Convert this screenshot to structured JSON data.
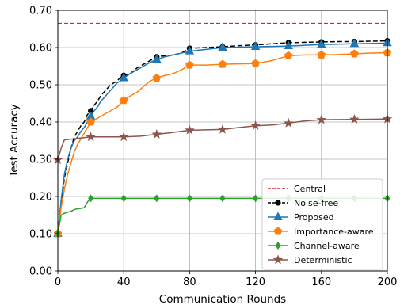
{
  "chart_data": {
    "type": "line",
    "title": "",
    "xlabel": "Communication Rounds",
    "ylabel": "Test Accuracy",
    "xlim": [
      0,
      200
    ],
    "ylim": [
      0,
      0.7
    ],
    "xticks": [
      0,
      40,
      80,
      120,
      160,
      200
    ],
    "xtick_labels": [
      "0",
      "40",
      "80",
      "120",
      "160",
      "200"
    ],
    "yticks": [
      0,
      0.1,
      0.2,
      0.3,
      0.4,
      0.5,
      0.6,
      0.7
    ],
    "ytick_labels": [
      "0.00",
      "0.10",
      "0.20",
      "0.30",
      "0.40",
      "0.50",
      "0.60",
      "0.70"
    ],
    "grid": true,
    "legend_position": "bottom-right",
    "series": [
      {
        "name": "Central",
        "color": "#d62728",
        "style": "dashed",
        "marker": "none",
        "x": [
          0,
          200
        ],
        "y": [
          0.665,
          0.665
        ],
        "markers_x": []
      },
      {
        "name": "Noise-free",
        "color": "#000000",
        "style": "dashed",
        "marker": "circle",
        "x": [
          0,
          2,
          4,
          6,
          8,
          10,
          12,
          14,
          16,
          18,
          20,
          22,
          24,
          26,
          28,
          30,
          32,
          34,
          36,
          38,
          40,
          44,
          48,
          52,
          56,
          60,
          65,
          70,
          75,
          80,
          90,
          100,
          110,
          120,
          130,
          140,
          150,
          160,
          170,
          180,
          190,
          200
        ],
        "y": [
          0.1,
          0.18,
          0.25,
          0.29,
          0.33,
          0.36,
          0.375,
          0.39,
          0.4,
          0.42,
          0.43,
          0.445,
          0.455,
          0.47,
          0.48,
          0.49,
          0.5,
          0.505,
          0.51,
          0.52,
          0.525,
          0.53,
          0.545,
          0.555,
          0.565,
          0.575,
          0.578,
          0.58,
          0.585,
          0.598,
          0.6,
          0.602,
          0.605,
          0.607,
          0.61,
          0.613,
          0.614,
          0.615,
          0.616,
          0.616,
          0.617,
          0.618
        ],
        "markers_x": [
          0,
          20,
          40,
          60,
          80,
          100,
          120,
          140,
          160,
          180,
          200
        ]
      },
      {
        "name": "Proposed",
        "color": "#1f77b4",
        "style": "solid",
        "marker": "triangle",
        "x": [
          0,
          2,
          4,
          6,
          8,
          10,
          12,
          14,
          16,
          18,
          20,
          22,
          24,
          26,
          28,
          30,
          32,
          34,
          36,
          38,
          40,
          44,
          48,
          52,
          56,
          60,
          65,
          70,
          75,
          80,
          90,
          100,
          110,
          120,
          130,
          140,
          150,
          160,
          170,
          180,
          190,
          200
        ],
        "y": [
          0.1,
          0.19,
          0.26,
          0.3,
          0.33,
          0.35,
          0.36,
          0.375,
          0.385,
          0.4,
          0.415,
          0.43,
          0.44,
          0.455,
          0.465,
          0.475,
          0.485,
          0.495,
          0.505,
          0.51,
          0.518,
          0.53,
          0.54,
          0.55,
          0.56,
          0.568,
          0.575,
          0.58,
          0.585,
          0.59,
          0.595,
          0.6,
          0.601,
          0.602,
          0.603,
          0.604,
          0.606,
          0.608,
          0.609,
          0.61,
          0.611,
          0.612
        ],
        "markers_x": [
          0,
          20,
          40,
          60,
          80,
          100,
          120,
          140,
          160,
          180,
          200
        ]
      },
      {
        "name": "Importance-aware",
        "color": "#ff7f0e",
        "style": "solid",
        "marker": "pentagon",
        "x": [
          0,
          2,
          4,
          6,
          8,
          10,
          12,
          14,
          16,
          18,
          20,
          24,
          28,
          32,
          36,
          40,
          44,
          48,
          52,
          56,
          60,
          65,
          70,
          75,
          80,
          90,
          100,
          110,
          120,
          130,
          140,
          150,
          160,
          170,
          180,
          190,
          200
        ],
        "y": [
          0.1,
          0.17,
          0.22,
          0.26,
          0.29,
          0.32,
          0.34,
          0.355,
          0.37,
          0.385,
          0.4,
          0.41,
          0.42,
          0.43,
          0.44,
          0.458,
          0.47,
          0.48,
          0.495,
          0.51,
          0.518,
          0.525,
          0.53,
          0.54,
          0.553,
          0.553,
          0.555,
          0.556,
          0.557,
          0.565,
          0.578,
          0.58,
          0.58,
          0.581,
          0.583,
          0.585,
          0.586
        ],
        "markers_x": [
          0,
          20,
          40,
          60,
          80,
          100,
          120,
          140,
          160,
          180,
          200
        ]
      },
      {
        "name": "Channel-aware",
        "color": "#2ca02c",
        "style": "solid",
        "marker": "diamond",
        "x": [
          0,
          2,
          4,
          6,
          8,
          10,
          12,
          14,
          16,
          18,
          20,
          40,
          60,
          80,
          100,
          120,
          140,
          160,
          180,
          200
        ],
        "y": [
          0.1,
          0.15,
          0.155,
          0.158,
          0.16,
          0.165,
          0.167,
          0.168,
          0.17,
          0.185,
          0.195,
          0.195,
          0.195,
          0.195,
          0.195,
          0.195,
          0.195,
          0.195,
          0.195,
          0.195
        ],
        "markers_x": [
          0,
          20,
          40,
          60,
          80,
          100,
          120,
          140,
          160,
          180,
          200
        ]
      },
      {
        "name": "Deterministic",
        "color": "#8c564b",
        "style": "solid",
        "marker": "star",
        "x": [
          0,
          2,
          4,
          10,
          20,
          40,
          50,
          60,
          70,
          80,
          100,
          110,
          120,
          130,
          140,
          150,
          160,
          180,
          200
        ],
        "y": [
          0.298,
          0.33,
          0.352,
          0.355,
          0.36,
          0.36,
          0.362,
          0.367,
          0.372,
          0.378,
          0.38,
          0.385,
          0.39,
          0.392,
          0.397,
          0.403,
          0.406,
          0.407,
          0.408
        ],
        "markers_x": [
          0,
          20,
          40,
          60,
          80,
          100,
          120,
          140,
          160,
          180,
          200
        ]
      }
    ]
  }
}
